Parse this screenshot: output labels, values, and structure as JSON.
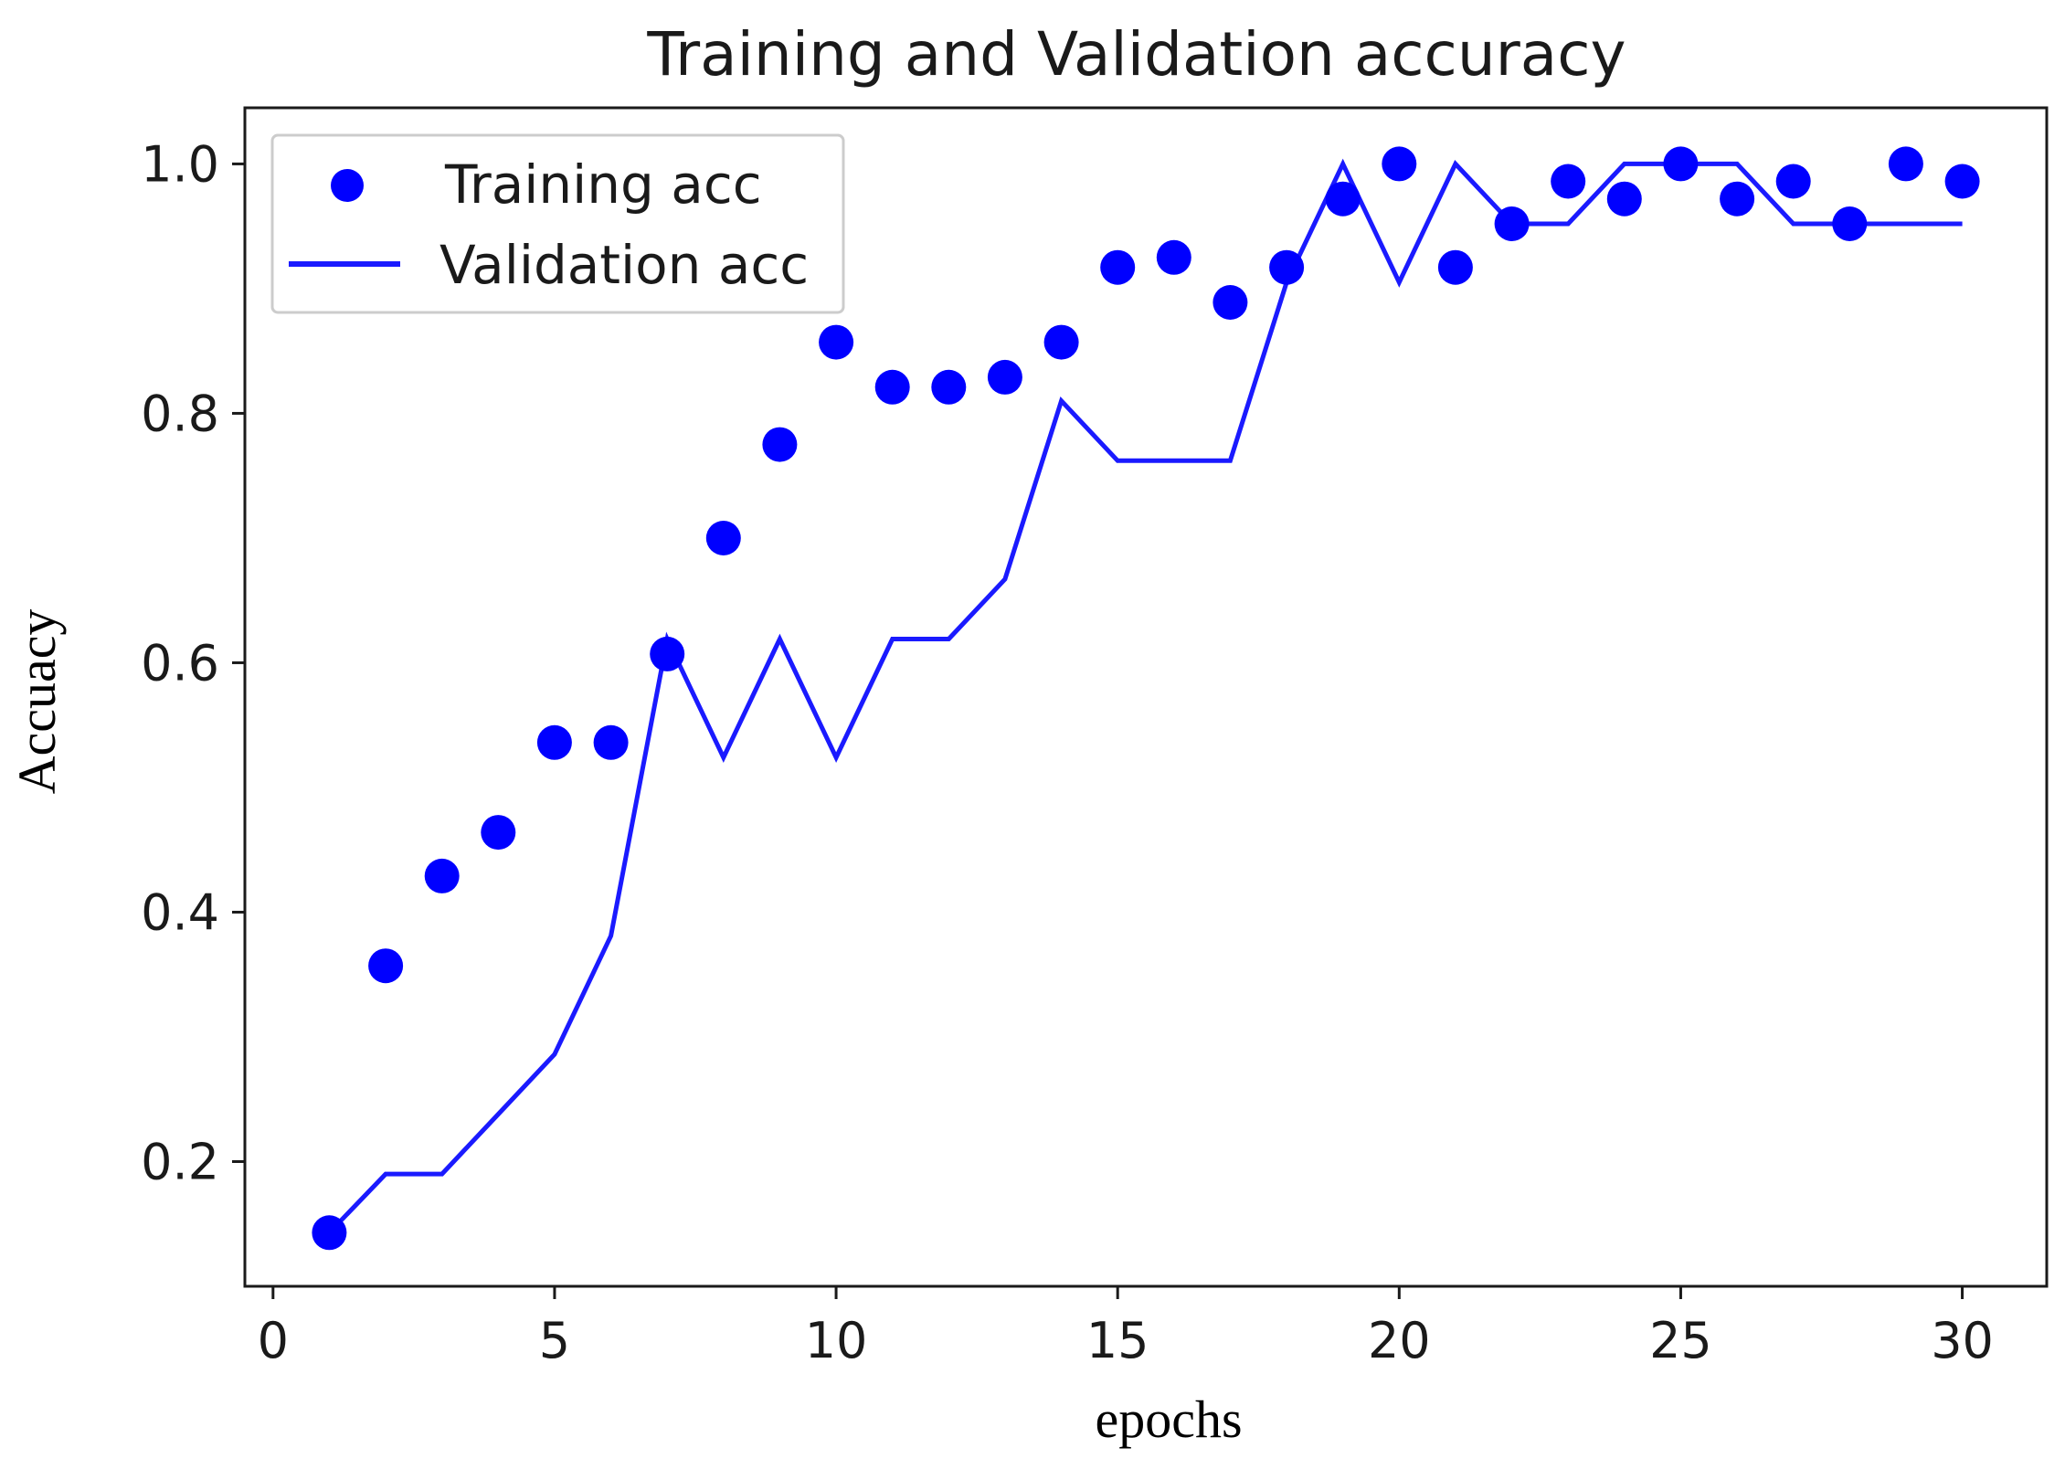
{
  "chart_data": {
    "type": "line",
    "title": "Training and Validation accuracy",
    "xlabel": "epochs",
    "ylabel": "Accuacy",
    "xlim": [
      -0.5,
      31.5
    ],
    "ylim": [
      0.1,
      1.045
    ],
    "x_ticks": [
      0,
      5,
      10,
      15,
      20,
      25,
      30
    ],
    "x_tick_labels": [
      "0",
      "5",
      "10",
      "15",
      "20",
      "25",
      "30"
    ],
    "y_ticks": [
      0.2,
      0.4,
      0.6,
      0.8,
      1.0
    ],
    "y_tick_labels": [
      "0.2",
      "0.4",
      "0.6",
      "0.8",
      "1.0"
    ],
    "grid": false,
    "legend_position": "top-left",
    "series": [
      {
        "name": "Training acc",
        "style": "markers",
        "color": "#0000ff",
        "x": [
          1,
          2,
          3,
          4,
          5,
          6,
          7,
          8,
          9,
          10,
          11,
          12,
          13,
          14,
          15,
          16,
          17,
          18,
          19,
          20,
          21,
          22,
          23,
          24,
          25,
          26,
          27,
          28,
          29,
          30
        ],
        "y": [
          0.143,
          0.357,
          0.429,
          0.464,
          0.536,
          0.536,
          0.607,
          0.7,
          0.775,
          0.857,
          0.821,
          0.821,
          0.829,
          0.857,
          0.917,
          0.925,
          0.889,
          0.917,
          0.972,
          1.0,
          0.917,
          0.952,
          0.986,
          0.972,
          1.0,
          0.972,
          0.986,
          0.952,
          1.0,
          0.986
        ]
      },
      {
        "name": "Validation acc",
        "style": "line",
        "color": "#1a1aff",
        "x": [
          1,
          2,
          3,
          4,
          5,
          6,
          7,
          8,
          9,
          10,
          11,
          12,
          13,
          14,
          15,
          16,
          17,
          18,
          19,
          20,
          21,
          22,
          23,
          24,
          25,
          26,
          27,
          28,
          29,
          30
        ],
        "y": [
          0.143,
          0.19,
          0.19,
          0.238,
          0.286,
          0.381,
          0.619,
          0.524,
          0.619,
          0.524,
          0.619,
          0.619,
          0.667,
          0.81,
          0.762,
          0.762,
          0.762,
          0.905,
          1.0,
          0.905,
          1.0,
          0.952,
          0.952,
          1.0,
          1.0,
          1.0,
          0.952,
          0.952,
          0.952,
          0.952
        ]
      }
    ]
  }
}
